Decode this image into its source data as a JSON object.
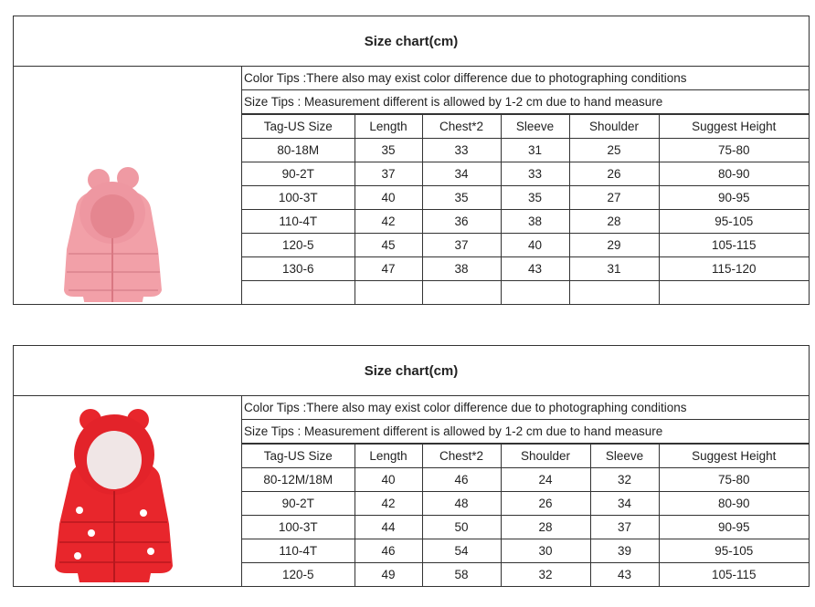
{
  "charts": [
    {
      "title": "Size chart(cm)",
      "color_tip": "Color Tips :There also may exist color difference due to photographing conditions",
      "size_tip": "Size Tips : Measurement different is allowed by 1-2 cm due to hand measure",
      "headers": [
        "Tag-US Size",
        "Length",
        "Chest*2",
        "Sleeve",
        "Shoulder",
        "Suggest Height"
      ],
      "rows": [
        [
          "80-18M",
          "35",
          "33",
          "31",
          "25",
          "75-80"
        ],
        [
          "90-2T",
          "37",
          "34",
          "33",
          "26",
          "80-90"
        ],
        [
          "100-3T",
          "40",
          "35",
          "35",
          "27",
          "90-95"
        ],
        [
          "110-4T",
          "42",
          "36",
          "38",
          "28",
          "95-105"
        ],
        [
          "120-5",
          "45",
          "37",
          "40",
          "29",
          "105-115"
        ],
        [
          "130-6",
          "47",
          "38",
          "43",
          "31",
          "115-120"
        ],
        [
          "",
          "",
          "",
          "",
          "",
          ""
        ]
      ],
      "jacket_color": "#f2a0a8"
    },
    {
      "title": "Size chart(cm)",
      "color_tip": "Color Tips :There also may exist color difference due to photographing conditions",
      "size_tip": "Size Tips : Measurement different is allowed by 1-2 cm due to hand measure",
      "headers": [
        "Tag-US Size",
        "Length",
        "Chest*2",
        "Shoulder",
        "Sleeve",
        "Suggest Height"
      ],
      "rows": [
        [
          "80-12M/18M",
          "40",
          "46",
          "24",
          "32",
          "75-80"
        ],
        [
          "90-2T",
          "42",
          "48",
          "26",
          "34",
          "80-90"
        ],
        [
          "100-3T",
          "44",
          "50",
          "28",
          "37",
          "90-95"
        ],
        [
          "110-4T",
          "46",
          "54",
          "30",
          "39",
          "95-105"
        ],
        [
          "120-5",
          "49",
          "58",
          "32",
          "43",
          "105-115"
        ]
      ],
      "jacket_color": "#e8262c"
    }
  ]
}
